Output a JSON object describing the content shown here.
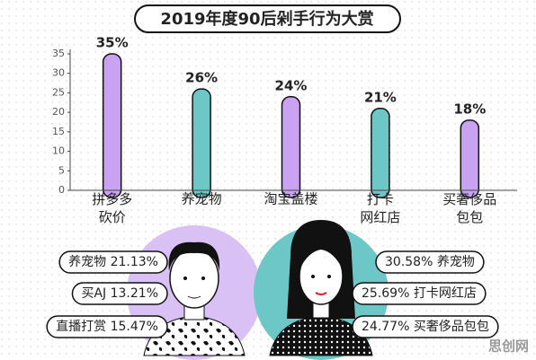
{
  "chart_data": {
    "type": "bar",
    "title": "2019年度90后剁手行为大赏",
    "categories": [
      "拼多多\n砍价",
      "养宠物",
      "淘宝盖楼",
      "打卡\n网红店",
      "买奢侈品\n包包"
    ],
    "values": [
      35,
      26,
      24,
      21,
      18
    ],
    "value_labels": [
      "35%",
      "26%",
      "24%",
      "21%",
      "18%"
    ],
    "colors": [
      "#c9a3f2",
      "#6dc7c7",
      "#c9a3f2",
      "#6dc7c7",
      "#c9a3f2"
    ],
    "ylim": [
      0,
      35
    ],
    "yticks": [
      0,
      5,
      10,
      15,
      20,
      25,
      30,
      35
    ],
    "grid": false
  },
  "callouts": {
    "left": [
      "养宠物 21.13%",
      "买AJ 13.21%",
      "直播打赏 15.47%"
    ],
    "right": [
      "30.58% 养宠物",
      "25.69% 打卡网红店",
      "24.77% 买奢侈品包包"
    ]
  },
  "watermark": "思创网"
}
